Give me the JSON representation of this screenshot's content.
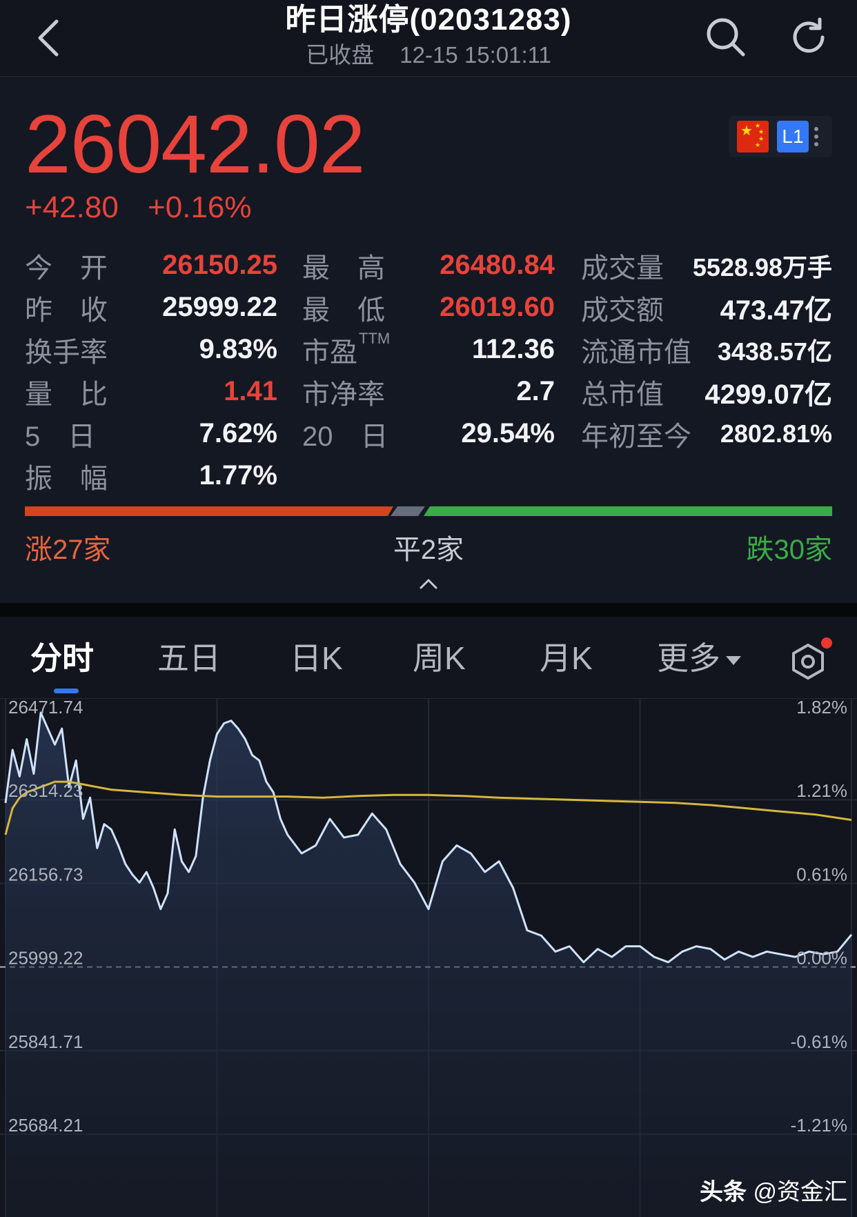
{
  "header": {
    "title": "昨日涨停(02031283)",
    "status": "已收盘",
    "timestamp": "12-15 15:01:11",
    "icons": [
      "back-arrow-icon",
      "search-icon",
      "refresh-icon"
    ]
  },
  "quote": {
    "price": "26042.02",
    "change": "+42.80",
    "change_pct": "+0.16%",
    "level": "L1",
    "colors": {
      "up": "#e8433a",
      "down": "#3bab47",
      "flat": "#666d7b"
    }
  },
  "stats": {
    "open": {
      "label": "今　开",
      "value": "26150.25"
    },
    "prev_close": {
      "label": "昨　收",
      "value": "25999.22"
    },
    "turnover_rate": {
      "label": "换手率",
      "value": "9.83%"
    },
    "volume_ratio": {
      "label": "量　比",
      "value": "1.41"
    },
    "five_day": {
      "label": "5　日",
      "value": "7.62%"
    },
    "amplitude": {
      "label": "振　幅",
      "value": "1.77%"
    },
    "high": {
      "label": "最　高",
      "value": "26480.84"
    },
    "low": {
      "label": "最　低",
      "value": "26019.60"
    },
    "pe_ttm": {
      "label": "市盈",
      "sup": "TTM",
      "value": "112.36"
    },
    "pb": {
      "label": "市净率",
      "value": "2.7"
    },
    "twenty_day": {
      "label": "20　日",
      "value": "29.54%"
    },
    "volume": {
      "label": "成交量",
      "value": "5528.98万手"
    },
    "amount": {
      "label": "成交额",
      "value": "473.47亿"
    },
    "float_cap": {
      "label": "流通市值",
      "value": "3438.57亿"
    },
    "total_cap": {
      "label": "总市值",
      "value": "4299.07亿"
    },
    "ytd": {
      "label": "年初至今",
      "value": "2802.81%"
    }
  },
  "breadth": {
    "up_label": "涨27家",
    "flat_label": "平2家",
    "down_label": "跌30家",
    "up": 27,
    "flat": 2,
    "down": 30
  },
  "tabs": [
    {
      "label": "分时",
      "active": true
    },
    {
      "label": "五日"
    },
    {
      "label": "日K"
    },
    {
      "label": "周K"
    },
    {
      "label": "月K"
    },
    {
      "label": "更多"
    }
  ],
  "chart_data": {
    "type": "line",
    "y_left_ticks": [
      "26471.74",
      "26314.23",
      "26156.73",
      "25999.22",
      "25841.71",
      "25684.21"
    ],
    "y_right_ticks": [
      "1.82%",
      "1.21%",
      "0.61%",
      "0.00%",
      "-0.61%",
      "-1.21%"
    ],
    "ylim": [
      25684.21,
      26471.74
    ],
    "base": 25999.22,
    "x_range": [
      0,
      240
    ],
    "series": [
      {
        "color": "#cfe2ff",
        "x": [
          0,
          2,
          4,
          6,
          8,
          10,
          12,
          14,
          16,
          18,
          20,
          22,
          24,
          26,
          28,
          30,
          32,
          34,
          36,
          38,
          40,
          42,
          44,
          46,
          48,
          50,
          52,
          54,
          56,
          58,
          60,
          62,
          64,
          66,
          68,
          70,
          72,
          74,
          76,
          78,
          80,
          84,
          88,
          92,
          96,
          100,
          104,
          108,
          112,
          116,
          120,
          124,
          128,
          132,
          136,
          140,
          144,
          148,
          152,
          156,
          160,
          164,
          168,
          172,
          176,
          180,
          184,
          188,
          192,
          196,
          200,
          204,
          208,
          212,
          216,
          220,
          224,
          228,
          232,
          236,
          240
        ],
        "values": [
          26290,
          26390,
          26340,
          26410,
          26345,
          26460,
          26430,
          26400,
          26430,
          26320,
          26370,
          26260,
          26300,
          26205,
          26250,
          26240,
          26210,
          26175,
          26155,
          26140,
          26160,
          26130,
          26090,
          26120,
          26240,
          26180,
          26160,
          26190,
          26300,
          26370,
          26420,
          26440,
          26445,
          26430,
          26410,
          26380,
          26370,
          26330,
          26310,
          26260,
          26230,
          26195,
          26210,
          26260,
          26225,
          26230,
          26270,
          26240,
          26175,
          26140,
          26090,
          26180,
          26210,
          26195,
          26160,
          26180,
          26130,
          26050,
          26040,
          26010,
          26020,
          25990,
          26015,
          26000,
          26020,
          26020,
          26000,
          25990,
          26010,
          26020,
          26015,
          25995,
          26010,
          26000,
          26010,
          26005,
          26000,
          26010,
          26005,
          26010,
          26042
        ]
      },
      {
        "color": "#d7b73c",
        "x": [
          0,
          2,
          4,
          6,
          8,
          10,
          14,
          18,
          22,
          26,
          30,
          40,
          50,
          60,
          70,
          80,
          90,
          100,
          110,
          120,
          130,
          140,
          150,
          160,
          170,
          180,
          190,
          200,
          210,
          220,
          230,
          240
        ],
        "values": [
          26230,
          26280,
          26300,
          26310,
          26315,
          26320,
          26330,
          26330,
          26325,
          26320,
          26315,
          26310,
          26305,
          26302,
          26302,
          26302,
          26300,
          26303,
          26305,
          26305,
          26303,
          26300,
          26298,
          26296,
          26294,
          26292,
          26290,
          26286,
          26280,
          26274,
          26268,
          26258
        ]
      }
    ]
  },
  "watermark": {
    "brand": "头条",
    "account": "@资金汇"
  }
}
